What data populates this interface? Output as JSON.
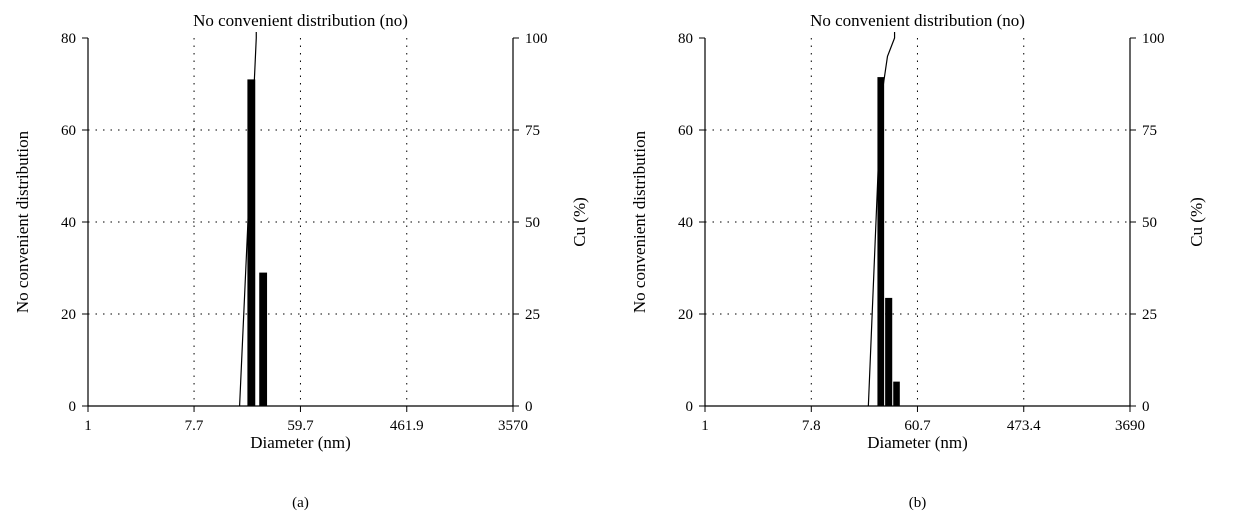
{
  "chart_data": [
    {
      "type": "bar",
      "panel_label": "(a)",
      "title": "No convenient distribution (no)",
      "xlabel": "Diameter (nm)",
      "ylabel": "No convenient distribution",
      "y2label": "Cu (%)",
      "x_scale": "log",
      "x_ticks": [
        "1",
        "7.7",
        "59.7",
        "461.9",
        "3570"
      ],
      "xlim": [
        1,
        3570
      ],
      "ylim": [
        0,
        80
      ],
      "y_ticks": [
        0,
        20,
        40,
        60,
        80
      ],
      "y2lim": [
        0,
        100
      ],
      "y2_ticks": [
        0,
        25,
        50,
        75,
        100
      ],
      "grid": true,
      "bars": [
        {
          "x_from": 21.5,
          "x_to": 25.5,
          "value": 71
        },
        {
          "x_from": 27.0,
          "x_to": 32.0,
          "value": 29
        }
      ],
      "cumulative_line": [
        {
          "x": 18.5,
          "y": 0
        },
        {
          "x": 25.5,
          "y": 100
        }
      ]
    },
    {
      "type": "bar",
      "panel_label": "(b)",
      "title": "No convenient distribution (no)",
      "xlabel": "Diameter (nm)",
      "ylabel": "No convenient distribution",
      "y2label": "Cu (%)",
      "x_scale": "log",
      "x_ticks": [
        "1",
        "7.8",
        "60.7",
        "473.4",
        "3690"
      ],
      "xlim": [
        1,
        3690
      ],
      "ylim": [
        0,
        80
      ],
      "y_ticks": [
        0,
        20,
        40,
        60,
        80
      ],
      "y2lim": [
        0,
        100
      ],
      "y2_ticks": [
        0,
        25,
        50,
        75,
        100
      ],
      "grid": true,
      "bars": [
        {
          "x_from": 28.0,
          "x_to": 32.5,
          "value": 71.5
        },
        {
          "x_from": 32.5,
          "x_to": 38.0,
          "value": 23.5
        },
        {
          "x_from": 38.0,
          "x_to": 44.0,
          "value": 5.3
        }
      ],
      "cumulative_line": [
        {
          "x": 23.5,
          "y": 0
        },
        {
          "x": 30.0,
          "y": 83
        },
        {
          "x": 34.0,
          "y": 95
        },
        {
          "x": 39.0,
          "y": 100
        }
      ]
    }
  ]
}
